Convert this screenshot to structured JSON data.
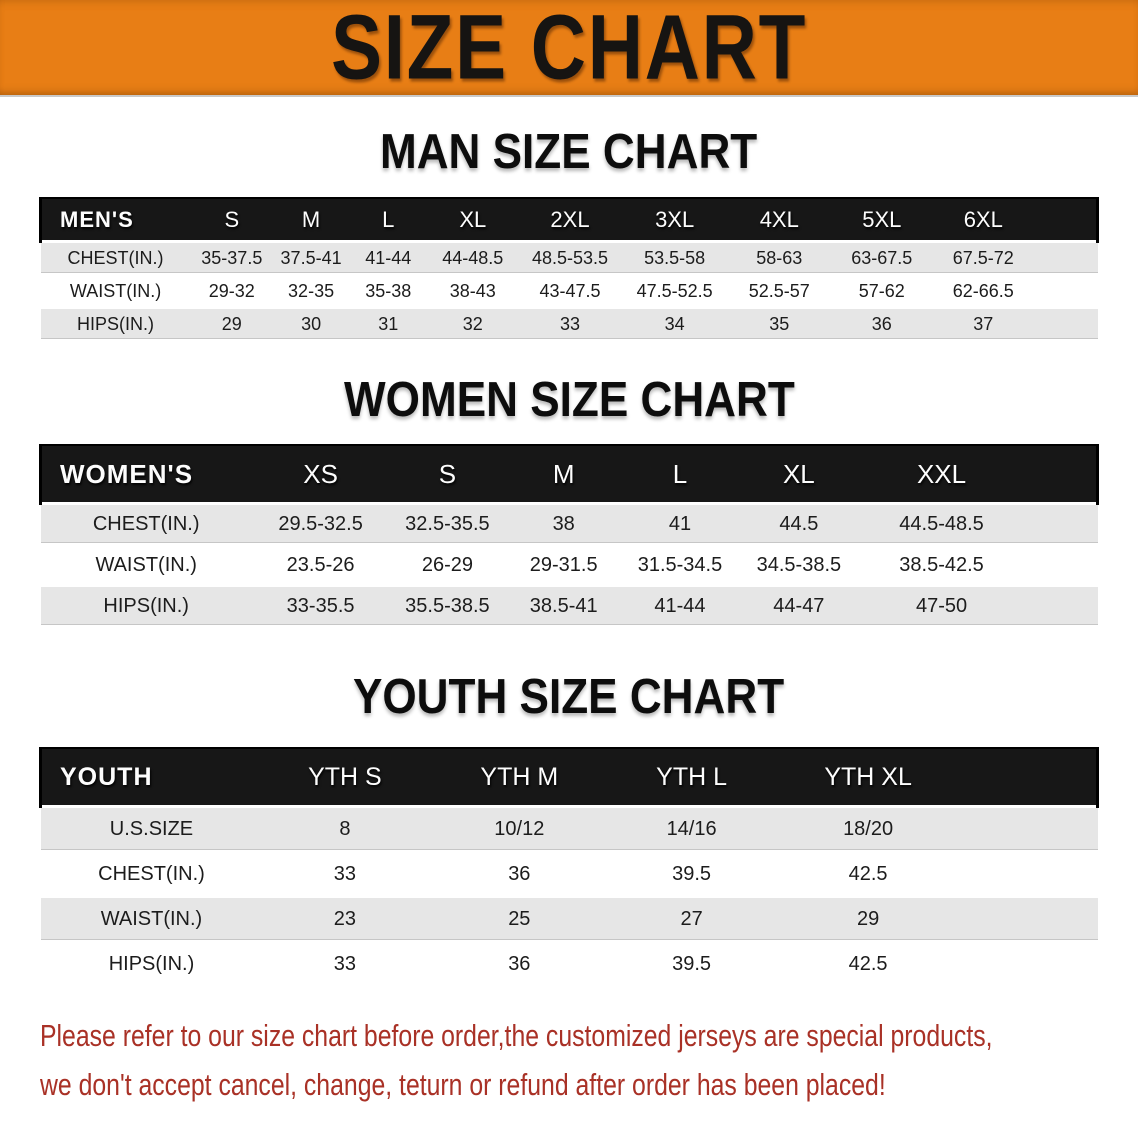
{
  "banner": {
    "title": "SIZE CHART"
  },
  "colors": {
    "banner_bg": "#e87e15",
    "header_bar_bg": "#171717",
    "row_alt_bg": "#e6e6e6",
    "disclaimer_red": "#a93126"
  },
  "sections": [
    {
      "heading": "MAN SIZE CHART",
      "group_label": "MEN'S",
      "sizes": [
        "S",
        "M",
        "L",
        "XL",
        "2XL",
        "3XL",
        "4XL",
        "5XL",
        "6XL"
      ],
      "rows": [
        {
          "label": "CHEST(IN.)",
          "values": [
            "35-37.5",
            "37.5-41",
            "41-44",
            "44-48.5",
            "48.5-53.5",
            "53.5-58",
            "58-63",
            "63-67.5",
            "67.5-72"
          ]
        },
        {
          "label": "WAIST(IN.)",
          "values": [
            "29-32",
            "32-35",
            "35-38",
            "38-43",
            "43-47.5",
            "47.5-52.5",
            "52.5-57",
            "57-62",
            "62-66.5"
          ]
        },
        {
          "label": "HIPS(IN.)",
          "values": [
            "29",
            "30",
            "31",
            "32",
            "33",
            "34",
            "35",
            "36",
            "37"
          ]
        }
      ]
    },
    {
      "heading": "WOMEN SIZE CHART",
      "group_label": "WOMEN'S",
      "sizes": [
        "XS",
        "S",
        "M",
        "L",
        "XL",
        "XXL"
      ],
      "rows": [
        {
          "label": "CHEST(IN.)",
          "values": [
            "29.5-32.5",
            "32.5-35.5",
            "38",
            "41",
            "44.5",
            "44.5-48.5"
          ]
        },
        {
          "label": "WAIST(IN.)",
          "values": [
            "23.5-26",
            "26-29",
            "29-31.5",
            "31.5-34.5",
            "34.5-38.5",
            "38.5-42.5"
          ]
        },
        {
          "label": "HIPS(IN.)",
          "values": [
            "33-35.5",
            "35.5-38.5",
            "38.5-41",
            "41-44",
            "44-47",
            "47-50"
          ]
        }
      ]
    },
    {
      "heading": "YOUTH SIZE CHART",
      "group_label": "YOUTH",
      "sizes": [
        "YTH S",
        "YTH M",
        "YTH L",
        "YTH XL"
      ],
      "rows": [
        {
          "label": "U.S.SIZE",
          "values": [
            "8",
            "10/12",
            "14/16",
            "18/20"
          ]
        },
        {
          "label": "CHEST(IN.)",
          "values": [
            "33",
            "36",
            "39.5",
            "42.5"
          ]
        },
        {
          "label": "WAIST(IN.)",
          "values": [
            "23",
            "25",
            "27",
            "29"
          ]
        },
        {
          "label": "HIPS(IN.)",
          "values": [
            "33",
            "36",
            "39.5",
            "42.5"
          ]
        }
      ]
    }
  ],
  "disclaimer": {
    "line1": "Please refer to our size chart before order,the customized jerseys are special products,",
    "line2": "we don't accept cancel, change, teturn or refund after order has been placed!"
  }
}
